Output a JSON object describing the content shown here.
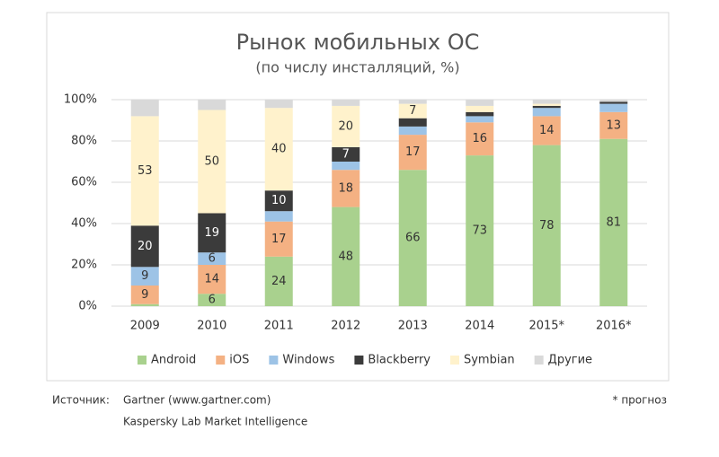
{
  "chart_data": {
    "type": "stacked_bar",
    "title": "Рынок мобильных ОС",
    "subtitle": "(по числу инсталляций, %)",
    "categories": [
      "2009",
      "2010",
      "2011",
      "2012",
      "2013",
      "2014",
      "2015*",
      "2016*"
    ],
    "series": [
      {
        "name": "Android",
        "color": "#a9d18e",
        "values": [
          1,
          6,
          24,
          48,
          66,
          73,
          78,
          81
        ],
        "value_labels": [
          null,
          "6",
          "24",
          "48",
          "66",
          "73",
          "78",
          "81"
        ]
      },
      {
        "name": "iOS",
        "color": "#f4b183",
        "values": [
          9,
          14,
          17,
          18,
          17,
          16,
          14,
          13
        ],
        "value_labels": [
          "9",
          "14",
          "17",
          "18",
          "17",
          "16",
          "14",
          "13"
        ]
      },
      {
        "name": "Windows",
        "color": "#9dc3e6",
        "values": [
          9,
          6,
          5,
          4,
          4,
          3,
          4,
          4
        ],
        "value_labels": [
          "9",
          "6",
          null,
          null,
          null,
          null,
          null,
          null
        ]
      },
      {
        "name": "Blackberry",
        "color": "#3b3b3b",
        "values": [
          20,
          19,
          10,
          7,
          4,
          2,
          1,
          1
        ],
        "value_labels": [
          "20",
          "19",
          "10",
          "7",
          null,
          null,
          null,
          null
        ]
      },
      {
        "name": "Symbian",
        "color": "#fff2cc",
        "values": [
          53,
          50,
          40,
          20,
          7,
          3,
          1,
          0
        ],
        "value_labels": [
          "53",
          "50",
          "40",
          "20",
          "7",
          null,
          null,
          null
        ]
      },
      {
        "name": "Другие",
        "color": "#d9d9d9",
        "values": [
          8,
          5,
          4,
          3,
          2,
          3,
          2,
          1
        ],
        "value_labels": [
          null,
          null,
          null,
          null,
          null,
          null,
          null,
          null
        ]
      }
    ],
    "ylim": [
      0,
      100
    ],
    "yticks": [
      {
        "value": 0,
        "label": "0%"
      },
      {
        "value": 20,
        "label": "20%"
      },
      {
        "value": 40,
        "label": "40%"
      },
      {
        "value": 60,
        "label": "60%"
      },
      {
        "value": 80,
        "label": "80%"
      },
      {
        "value": 100,
        "label": "100%"
      }
    ],
    "grid": true,
    "legend": "bottom"
  },
  "footer": {
    "source_label": "Источник:",
    "sources": [
      "Gartner (www.gartner.com)",
      "Kaspersky Lab Market Intelligence"
    ],
    "note": "* прогноз"
  }
}
